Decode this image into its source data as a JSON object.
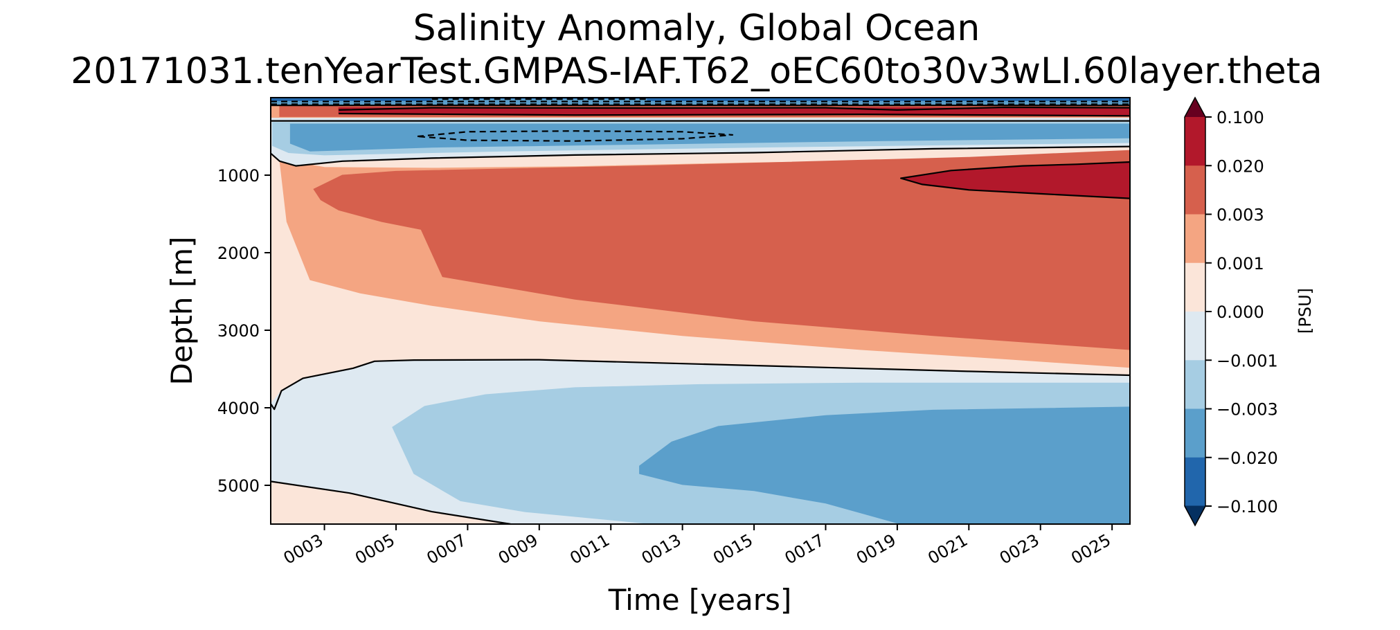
{
  "chart_data": {
    "type": "heatmap",
    "subtype": "filled-contour",
    "title": "Salinity Anomaly, Global Ocean",
    "subtitle": "20171031.tenYearTest.GMPAS-IAF.T62_oEC60to30v3wLI.60layer.theta",
    "xlabel": "Time [years]",
    "ylabel": "Depth [m]",
    "xlim": [
      1.5,
      25.5
    ],
    "ylim": [
      5500,
      0
    ],
    "x_ticks": [
      "0003",
      "0005",
      "0007",
      "0009",
      "0011",
      "0013",
      "0015",
      "0017",
      "0019",
      "0021",
      "0023",
      "0025"
    ],
    "x_tick_values": [
      3,
      5,
      7,
      9,
      11,
      13,
      15,
      17,
      19,
      21,
      23,
      25
    ],
    "y_ticks": [
      "1000",
      "2000",
      "3000",
      "4000",
      "5000"
    ],
    "y_tick_values": [
      1000,
      2000,
      3000,
      4000,
      5000
    ],
    "colorbar": {
      "label": "[PSU]",
      "levels": [
        -0.1,
        -0.02,
        -0.003,
        -0.001,
        0.0,
        0.001,
        0.003,
        0.02,
        0.1
      ],
      "tick_labels": [
        "0.100",
        "0.020",
        "0.003",
        "0.001",
        "0.000",
        "−0.001",
        "−0.003",
        "−0.020",
        "−0.100"
      ],
      "colors_top_to_bottom": [
        "#67001f",
        "#b2182b",
        "#d6604d",
        "#f4a582",
        "#fbe5d9",
        "#dee9f1",
        "#a6cde3",
        "#5b9fcb",
        "#2166ac",
        "#053061"
      ]
    },
    "regions": [
      {
        "color": "#fbe5d9",
        "points": [
          [
            1.5,
            0
          ],
          [
            25.5,
            0
          ],
          [
            25.5,
            5500
          ],
          [
            1.5,
            5500
          ]
        ]
      },
      {
        "color": "#dee9f1",
        "points": [
          [
            1.5,
            3950
          ],
          [
            1.8,
            3780
          ],
          [
            2.4,
            3620
          ],
          [
            3.8,
            3490
          ],
          [
            4.4,
            3400
          ],
          [
            5.5,
            3385
          ],
          [
            9,
            3380
          ],
          [
            13,
            3430
          ],
          [
            17,
            3480
          ],
          [
            21,
            3530
          ],
          [
            25.5,
            3580
          ],
          [
            25.5,
            5500
          ],
          [
            8.2,
            5500
          ],
          [
            6,
            5340
          ],
          [
            3.7,
            5100
          ],
          [
            1.5,
            4950
          ]
        ]
      },
      {
        "color": "#a6cde3",
        "points": [
          [
            4.9,
            4250
          ],
          [
            5.8,
            3980
          ],
          [
            7.5,
            3830
          ],
          [
            10,
            3740
          ],
          [
            13.5,
            3700
          ],
          [
            18,
            3680
          ],
          [
            25.5,
            3680
          ],
          [
            25.5,
            5500
          ],
          [
            12.2,
            5500
          ],
          [
            8.6,
            5340
          ],
          [
            6.8,
            5200
          ],
          [
            5.5,
            4850
          ]
        ]
      },
      {
        "color": "#5b9fcb",
        "points": [
          [
            11.8,
            4750
          ],
          [
            12.7,
            4440
          ],
          [
            14,
            4240
          ],
          [
            17,
            4100
          ],
          [
            20,
            4030
          ],
          [
            25.5,
            3990
          ],
          [
            25.5,
            5500
          ],
          [
            19.1,
            5500
          ],
          [
            17,
            5230
          ],
          [
            15,
            5070
          ],
          [
            13,
            4990
          ],
          [
            11.8,
            4850
          ]
        ]
      },
      {
        "color": "#f4a582",
        "points": [
          [
            1.75,
            800
          ],
          [
            3,
            900
          ],
          [
            6,
            910
          ],
          [
            10,
            890
          ],
          [
            15,
            840
          ],
          [
            20,
            810
          ],
          [
            25.5,
            770
          ],
          [
            25.5,
            3480
          ],
          [
            22,
            3370
          ],
          [
            18,
            3250
          ],
          [
            13,
            3070
          ],
          [
            9,
            2880
          ],
          [
            6,
            2680
          ],
          [
            4,
            2520
          ],
          [
            2.6,
            2350
          ],
          [
            1.95,
            1600
          ],
          [
            1.8,
            1000
          ]
        ]
      },
      {
        "color": "#d6604d",
        "points": [
          [
            2.7,
            1180
          ],
          [
            3.5,
            1000
          ],
          [
            5,
            950
          ],
          [
            8,
            920
          ],
          [
            12,
            880
          ],
          [
            17,
            820
          ],
          [
            21,
            770
          ],
          [
            25.5,
            680
          ],
          [
            25.5,
            3250
          ],
          [
            20,
            3070
          ],
          [
            15,
            2880
          ],
          [
            10,
            2600
          ],
          [
            6.3,
            2310
          ],
          [
            5.7,
            1700
          ],
          [
            4.6,
            1600
          ],
          [
            3.4,
            1450
          ],
          [
            2.9,
            1320
          ]
        ]
      },
      {
        "color": "#b2182b",
        "points": [
          [
            19.1,
            1040
          ],
          [
            20.5,
            940
          ],
          [
            22.5,
            880
          ],
          [
            24,
            860
          ],
          [
            25.5,
            830
          ],
          [
            25.5,
            1300
          ],
          [
            23,
            1240
          ],
          [
            21,
            1190
          ],
          [
            19.7,
            1120
          ]
        ]
      },
      {
        "color": "#dee9f1",
        "points": [
          [
            1.5,
            260
          ],
          [
            25.5,
            260
          ],
          [
            25.5,
            630
          ],
          [
            20,
            660
          ],
          [
            15,
            710
          ],
          [
            10,
            740
          ],
          [
            6,
            780
          ],
          [
            3.5,
            820
          ],
          [
            2.2,
            880
          ],
          [
            1.75,
            820
          ],
          [
            1.5,
            720
          ]
        ]
      },
      {
        "color": "#a6cde3",
        "points": [
          [
            1.55,
            320
          ],
          [
            25.5,
            320
          ],
          [
            25.5,
            580
          ],
          [
            15,
            640
          ],
          [
            8,
            690
          ],
          [
            3,
            740
          ],
          [
            2,
            710
          ],
          [
            1.55,
            620
          ]
        ]
      },
      {
        "color": "#5b9fcb",
        "points": [
          [
            2.05,
            340
          ],
          [
            25.5,
            340
          ],
          [
            25.5,
            520
          ],
          [
            18,
            560
          ],
          [
            12,
            600
          ],
          [
            6,
            640
          ],
          [
            2.6,
            690
          ],
          [
            2.05,
            590
          ]
        ]
      },
      {
        "color": "#f4a582",
        "points": [
          [
            1.5,
            100
          ],
          [
            25.5,
            100
          ],
          [
            25.5,
            255
          ],
          [
            1.5,
            255
          ]
        ]
      },
      {
        "color": "#d6604d",
        "points": [
          [
            1.75,
            105
          ],
          [
            25.5,
            105
          ],
          [
            25.5,
            245
          ],
          [
            1.75,
            245
          ]
        ]
      },
      {
        "color": "#b2182b",
        "points": [
          [
            3.4,
            130
          ],
          [
            25.5,
            130
          ],
          [
            25.5,
            235
          ],
          [
            18,
            215
          ],
          [
            10,
            225
          ],
          [
            3.4,
            205
          ]
        ]
      },
      {
        "color": "#5b9fcb",
        "points": [
          [
            1.5,
            0
          ],
          [
            25.5,
            0
          ],
          [
            25.5,
            95
          ],
          [
            1.5,
            95
          ]
        ]
      },
      {
        "color": "#2166ac",
        "points": [
          [
            1.5,
            0
          ],
          [
            25.5,
            0
          ],
          [
            25.5,
            40
          ],
          [
            1.5,
            40
          ]
        ]
      },
      {
        "color": "#5b9fcb",
        "points": [
          [
            6,
            20
          ],
          [
            12,
            20
          ],
          [
            12,
            50
          ],
          [
            6,
            50
          ]
        ]
      }
    ],
    "contour_lines": [
      {
        "style": "solid",
        "points": [
          [
            1.5,
            3950
          ],
          [
            1.6,
            4020
          ],
          [
            1.8,
            3780
          ],
          [
            2.4,
            3620
          ],
          [
            3.8,
            3490
          ],
          [
            4.4,
            3400
          ],
          [
            5.5,
            3385
          ],
          [
            9,
            3380
          ],
          [
            13,
            3430
          ],
          [
            17,
            3480
          ],
          [
            21,
            3530
          ],
          [
            25.5,
            3580
          ]
        ]
      },
      {
        "style": "solid",
        "points": [
          [
            1.5,
            4950
          ],
          [
            3.7,
            5100
          ],
          [
            6,
            5340
          ],
          [
            8.2,
            5500
          ]
        ]
      },
      {
        "style": "solid",
        "points": [
          [
            1.5,
            720
          ],
          [
            1.75,
            820
          ],
          [
            2.2,
            880
          ],
          [
            3.5,
            820
          ],
          [
            6,
            780
          ],
          [
            10,
            740
          ],
          [
            15,
            710
          ],
          [
            20,
            660
          ],
          [
            25.5,
            630
          ]
        ]
      },
      {
        "style": "solid",
        "points": [
          [
            25.5,
            830
          ],
          [
            24,
            860
          ],
          [
            22.5,
            880
          ],
          [
            20.5,
            940
          ],
          [
            19.1,
            1040
          ],
          [
            19.7,
            1120
          ],
          [
            21,
            1190
          ],
          [
            23,
            1240
          ],
          [
            25.5,
            1300
          ]
        ]
      },
      {
        "style": "solid",
        "points": [
          [
            1.5,
            300
          ],
          [
            25.5,
            300
          ]
        ]
      },
      {
        "style": "solid",
        "points": [
          [
            1.5,
            100
          ],
          [
            25.5,
            100
          ]
        ]
      },
      {
        "style": "solid",
        "points": [
          [
            3.4,
            205
          ],
          [
            10,
            225
          ],
          [
            18,
            215
          ],
          [
            25.5,
            235
          ]
        ]
      },
      {
        "style": "solid",
        "points": [
          [
            3.4,
            160
          ],
          [
            6,
            130
          ],
          [
            12,
            135
          ],
          [
            17,
            130
          ],
          [
            19,
            160
          ],
          [
            22,
            125
          ],
          [
            25.5,
            130
          ]
        ]
      },
      {
        "style": "dashed",
        "points": [
          [
            5.6,
            500
          ],
          [
            7,
            440
          ],
          [
            10,
            430
          ],
          [
            13,
            440
          ],
          [
            14.4,
            480
          ],
          [
            13,
            530
          ],
          [
            10,
            560
          ],
          [
            7,
            550
          ],
          [
            5.6,
            500
          ]
        ]
      },
      {
        "style": "dashed",
        "points": [
          [
            1.5,
            50
          ],
          [
            25.5,
            50
          ]
        ]
      },
      {
        "style": "dashed",
        "points": [
          [
            1.5,
            85
          ],
          [
            25.5,
            85
          ]
        ]
      },
      {
        "style": "dashed",
        "points": [
          [
            6,
            20
          ],
          [
            12,
            20
          ]
        ]
      }
    ]
  }
}
